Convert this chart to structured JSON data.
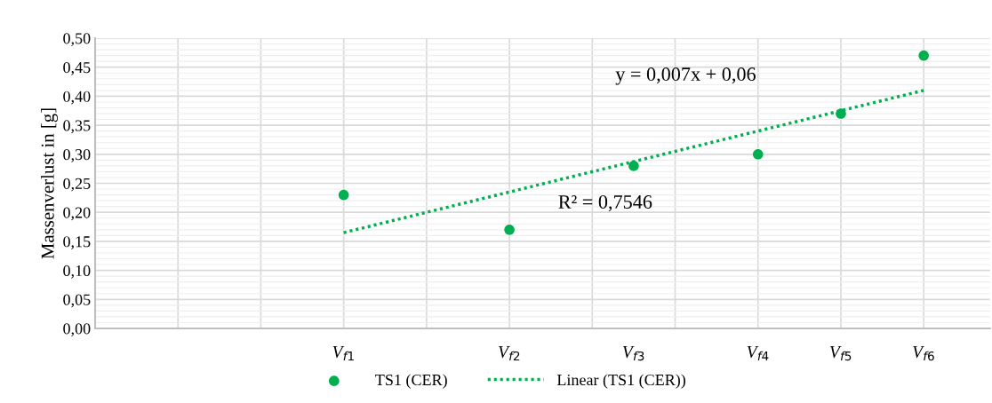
{
  "chart_data": {
    "type": "scatter",
    "ylabel": "Massenverlust in [g]",
    "categories": [
      null,
      null,
      null,
      null,
      null,
      null,
      "V$_{f1}$",
      null,
      null,
      null,
      "V$_{f2}$",
      null,
      null,
      "V$_{f3}$",
      null,
      null,
      "V$_{f4}$",
      null,
      "V$_{f5}$",
      null,
      "V$_{f6}$",
      null
    ],
    "series": [
      {
        "name": "TS1 (CER)",
        "color": "#00b050",
        "marker": "circle",
        "values": [
          null,
          null,
          null,
          null,
          null,
          null,
          0.23,
          null,
          null,
          null,
          0.17,
          null,
          null,
          0.28,
          null,
          null,
          0.3,
          null,
          0.37,
          null,
          0.47,
          null
        ]
      },
      {
        "name": "Linear (TS1 (CER))",
        "type": "line",
        "color": "#00b050",
        "line_style": "dotted",
        "values": [
          null,
          null,
          null,
          null,
          null,
          null,
          0.165,
          null,
          null,
          null,
          null,
          null,
          null,
          null,
          null,
          null,
          null,
          null,
          null,
          null,
          0.41,
          null
        ]
      }
    ],
    "ylim": [
      0,
      0.5
    ],
    "yticks": [
      {
        "value": 0,
        "label": "0,00"
      },
      {
        "value": 0.05,
        "label": "0,05"
      },
      {
        "value": 0.1,
        "label": "0,10"
      },
      {
        "value": 0.15,
        "label": "0,15"
      },
      {
        "value": 0.2,
        "label": "0,20"
      },
      {
        "value": 0.25,
        "label": "0,25"
      },
      {
        "value": 0.3,
        "label": "0,30"
      },
      {
        "value": 0.35,
        "label": "0,35"
      },
      {
        "value": 0.4,
        "label": "0,40"
      },
      {
        "value": 0.45,
        "label": "0,45"
      },
      {
        "value": 0.5,
        "label": "0,50"
      }
    ],
    "grid": true,
    "legend": "bottom",
    "annotations": [
      "y = 0,007x + 0,06",
      "R² = 0,7546"
    ]
  }
}
